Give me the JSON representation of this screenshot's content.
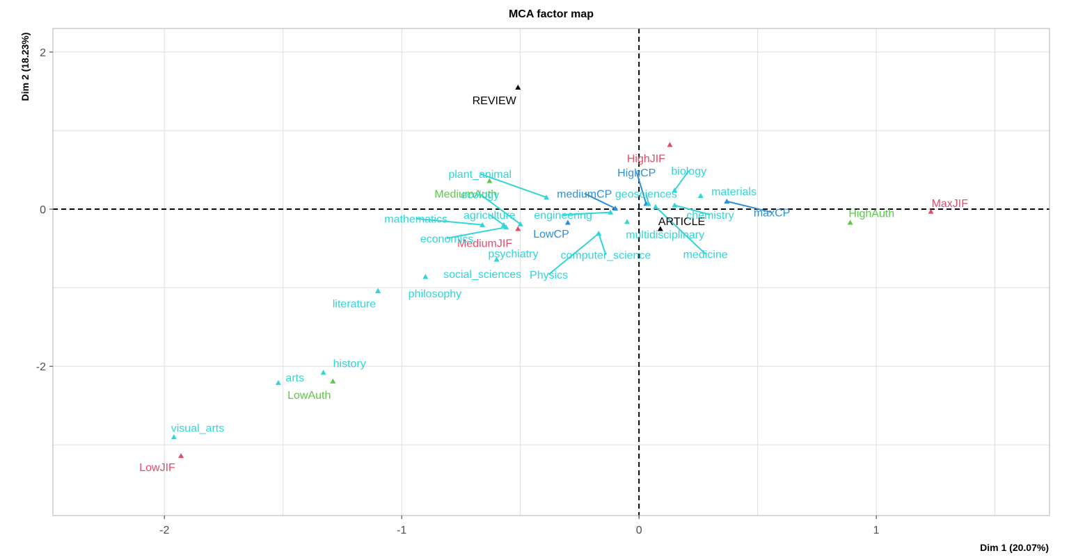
{
  "chart_data": {
    "type": "scatter",
    "title": "MCA factor map",
    "xlabel": "Dim 1 (20.07%)",
    "ylabel": "Dim 2 (18.23%)",
    "xlim": [
      -2.47,
      1.73
    ],
    "ylim": [
      -3.9,
      2.3
    ],
    "xticks": [
      -2,
      -1,
      0,
      1
    ],
    "yticks": [
      -2,
      0,
      2
    ],
    "grid": true,
    "reference_lines": [
      {
        "axis": "x",
        "value": 0,
        "style": "dashed"
      },
      {
        "axis": "y",
        "value": 0,
        "style": "dashed"
      }
    ],
    "colors": {
      "field": "#2fd5d9",
      "cp": "#2b8fd8",
      "jif": "#de4e6a",
      "auth": "#5cc848",
      "type": "#000000"
    },
    "points": [
      {
        "label": "REVIEW",
        "group": "type",
        "x": -0.51,
        "y": 1.55,
        "lx": -0.61,
        "ly": 1.39
      },
      {
        "label": "ARTICLE",
        "group": "type",
        "x": 0.09,
        "y": -0.25,
        "lx": 0.18,
        "ly": -0.15
      },
      {
        "label": "HighJIF",
        "group": "jif",
        "x": 0.13,
        "y": 0.82,
        "lx": 0.03,
        "ly": 0.65
      },
      {
        "label": "MaxJIF",
        "group": "jif",
        "x": 1.23,
        "y": -0.03,
        "lx": 1.31,
        "ly": 0.08
      },
      {
        "label": "MediumJIF",
        "group": "jif",
        "x": -0.51,
        "y": -0.25,
        "lx": -0.65,
        "ly": -0.43
      },
      {
        "label": "LowJIF",
        "group": "jif",
        "x": -1.93,
        "y": -3.14,
        "lx": -2.03,
        "ly": -3.28
      },
      {
        "label": "HighAuth",
        "group": "auth",
        "x": 0.89,
        "y": -0.17,
        "lx": 0.98,
        "ly": -0.05
      },
      {
        "label": "MediumAuth",
        "group": "auth",
        "x": -0.63,
        "y": 0.36,
        "lx": -0.73,
        "ly": 0.2
      },
      {
        "label": "LowAuth",
        "group": "auth",
        "x": -1.29,
        "y": -2.19,
        "lx": -1.39,
        "ly": -2.36
      },
      {
        "label": "HighCP",
        "group": "cp",
        "x": 0.03,
        "y": 0.07,
        "lx": -0.01,
        "ly": 0.47,
        "line": true
      },
      {
        "label": "mediumCP",
        "group": "cp",
        "x": -0.1,
        "y": 0.01,
        "lx": -0.23,
        "ly": 0.2,
        "line": true
      },
      {
        "label": "maxCP",
        "group": "cp",
        "x": 0.37,
        "y": 0.1,
        "lx": 0.56,
        "ly": -0.04,
        "line": true
      },
      {
        "label": "LowCP",
        "group": "cp",
        "x": -0.3,
        "y": -0.17,
        "lx": -0.37,
        "ly": -0.31
      },
      {
        "label": "plant_animal",
        "group": "field",
        "x": -0.39,
        "y": 0.15,
        "lx": -0.67,
        "ly": 0.45,
        "line": true
      },
      {
        "label": "ecology",
        "group": "field",
        "x": -0.5,
        "y": -0.19,
        "lx": -0.67,
        "ly": 0.19,
        "line": true
      },
      {
        "label": "agriculture",
        "group": "field",
        "x": -0.57,
        "y": -0.2,
        "lx": -0.63,
        "ly": -0.07,
        "line": true
      },
      {
        "label": "engineering",
        "group": "field",
        "x": -0.12,
        "y": -0.04,
        "lx": -0.32,
        "ly": -0.07,
        "line": true
      },
      {
        "label": "mathematics",
        "group": "field",
        "x": -0.66,
        "y": -0.2,
        "lx": -0.94,
        "ly": -0.12,
        "line": true
      },
      {
        "label": "economics",
        "group": "field",
        "x": -0.56,
        "y": -0.23,
        "lx": -0.81,
        "ly": -0.37,
        "line": true
      },
      {
        "label": "psychiatry",
        "group": "field",
        "x": -0.6,
        "y": -0.64,
        "lx": -0.53,
        "ly": -0.56
      },
      {
        "label": "social_sciences",
        "group": "field",
        "x": -0.9,
        "y": -0.86,
        "lx": -0.66,
        "ly": -0.82
      },
      {
        "label": "philosophy",
        "group": "field",
        "x": -1.1,
        "y": -1.04,
        "lx": -0.86,
        "ly": -1.07
      },
      {
        "label": "literature",
        "group": "field",
        "x": -1.1,
        "y": -1.04,
        "lx": -1.2,
        "ly": -1.2
      },
      {
        "label": "computer_science",
        "group": "field",
        "x": -0.17,
        "y": -0.31,
        "lx": -0.14,
        "ly": -0.58,
        "line": true
      },
      {
        "label": "Physics",
        "group": "field",
        "x": -0.17,
        "y": -0.31,
        "lx": -0.38,
        "ly": -0.83,
        "line": true
      },
      {
        "label": "multidisciplinary",
        "group": "field",
        "x": -0.05,
        "y": -0.16,
        "lx": 0.11,
        "ly": -0.32
      },
      {
        "label": "geosciences",
        "group": "field",
        "x": 0.04,
        "y": 0.07,
        "lx": 0.03,
        "ly": 0.2,
        "line": true
      },
      {
        "label": "biology",
        "group": "field",
        "x": 0.15,
        "y": 0.24,
        "lx": 0.21,
        "ly": 0.49,
        "line": true
      },
      {
        "label": "materials",
        "group": "field",
        "x": 0.26,
        "y": 0.17,
        "lx": 0.4,
        "ly": 0.23
      },
      {
        "label": "chemistry",
        "group": "field",
        "x": 0.15,
        "y": 0.05,
        "lx": 0.3,
        "ly": -0.07,
        "line": true
      },
      {
        "label": "medicine",
        "group": "field",
        "x": 0.07,
        "y": 0.03,
        "lx": 0.28,
        "ly": -0.57,
        "line": true
      },
      {
        "label": "history",
        "group": "field",
        "x": -1.33,
        "y": -2.08,
        "lx": -1.22,
        "ly": -1.96
      },
      {
        "label": "arts",
        "group": "field",
        "x": -1.52,
        "y": -2.21,
        "lx": -1.45,
        "ly": -2.14
      },
      {
        "label": "visual_arts",
        "group": "field",
        "x": -1.96,
        "y": -2.9,
        "lx": -1.86,
        "ly": -2.78
      }
    ]
  }
}
